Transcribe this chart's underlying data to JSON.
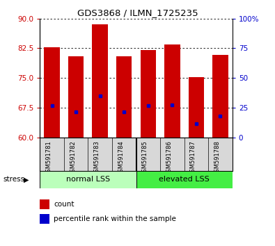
{
  "title": "GDS3868 / ILMN_1725235",
  "categories": [
    "GSM591781",
    "GSM591782",
    "GSM591783",
    "GSM591784",
    "GSM591785",
    "GSM591786",
    "GSM591787",
    "GSM591788"
  ],
  "bar_tops": [
    82.8,
    80.5,
    88.5,
    80.5,
    82.0,
    83.5,
    75.3,
    80.8
  ],
  "bar_bottom": 60,
  "blue_dots": [
    68.0,
    66.5,
    70.5,
    66.5,
    68.0,
    68.2,
    63.5,
    65.5
  ],
  "ylim_left": [
    60,
    90
  ],
  "ylim_right": [
    0,
    100
  ],
  "y_ticks_left": [
    60,
    67.5,
    75,
    82.5,
    90
  ],
  "y_ticks_right": [
    0,
    25,
    50,
    75,
    100
  ],
  "bar_color": "#cc0000",
  "dot_color": "#0000cc",
  "group_labels": [
    "normal LSS",
    "elevated LSS"
  ],
  "group_colors": [
    "#bbffbb",
    "#44ee44"
  ],
  "stress_label": "stress",
  "legend_items": [
    "count",
    "percentile rank within the sample"
  ],
  "left_tick_color": "#cc0000",
  "right_tick_color": "#0000cc",
  "grid_color": "#000000"
}
